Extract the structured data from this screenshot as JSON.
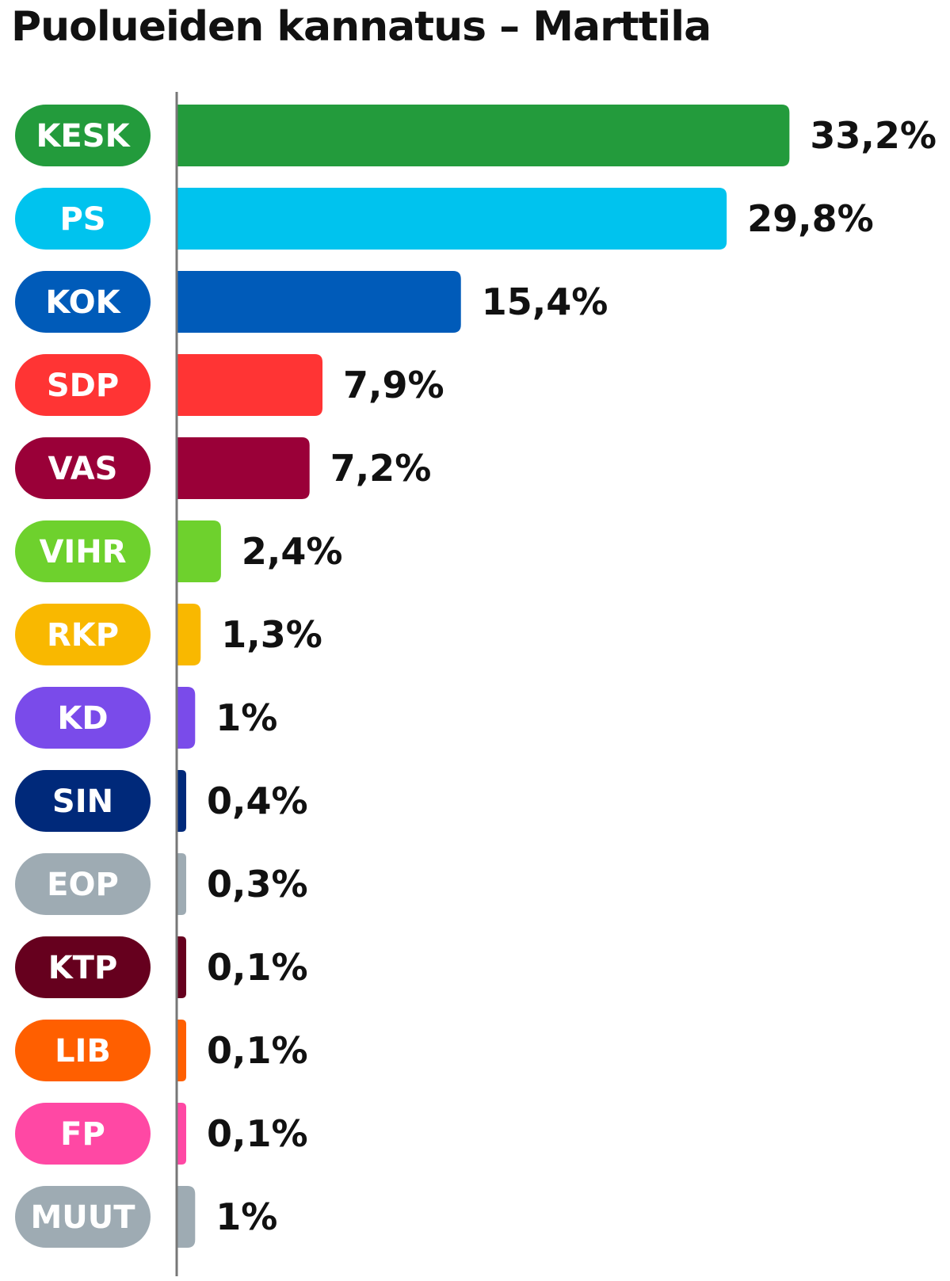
{
  "chart_data": {
    "type": "bar",
    "orientation": "horizontal",
    "title": "Puolueiden kannatus – Marttila",
    "xlabel": "",
    "ylabel": "",
    "xlim": [
      0,
      34
    ],
    "grid": false,
    "categories": [
      "KESK",
      "PS",
      "KOK",
      "SDP",
      "VAS",
      "VIHR",
      "RKP",
      "KD",
      "SIN",
      "EOP",
      "KTP",
      "LIB",
      "FP",
      "MUUT"
    ],
    "values": [
      33.2,
      29.8,
      15.4,
      7.9,
      7.2,
      2.4,
      1.3,
      1,
      0.4,
      0.3,
      0.1,
      0.1,
      0.1,
      1
    ],
    "value_labels": [
      "33,2%",
      "29,8%",
      "15,4%",
      "7,9%",
      "7,2%",
      "2,4%",
      "1,3%",
      "1%",
      "0,4%",
      "0,3%",
      "0,1%",
      "0,1%",
      "0,1%",
      "1%"
    ],
    "colors": [
      "#239b3c",
      "#00c3ee",
      "#005bb9",
      "#ff3434",
      "#9a0038",
      "#6ed12d",
      "#f9b800",
      "#7a4bea",
      "#00297a",
      "#9eabb3",
      "#66001e",
      "#ff5f00",
      "#ff48a4",
      "#9eabb3"
    ]
  }
}
